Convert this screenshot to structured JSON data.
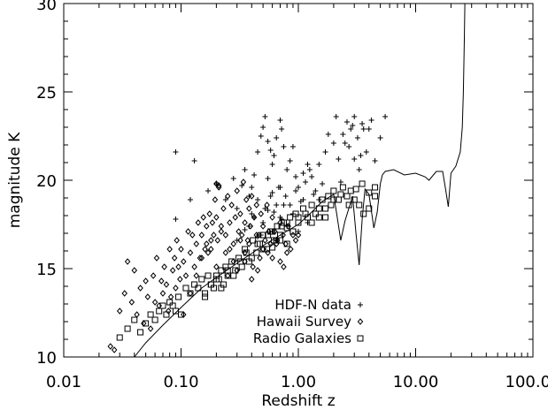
{
  "chart_data": {
    "type": "scatter",
    "xlabel": "Redshift z",
    "ylabel": "magnitude K",
    "xscale": "log",
    "xlim": [
      0.01,
      100
    ],
    "ylim": [
      10,
      30
    ],
    "x_ticks": [
      0.01,
      0.1,
      1,
      10,
      100
    ],
    "x_tick_labels": [
      "0.01",
      "0.10",
      "1.00",
      "10.00",
      "100.00"
    ],
    "y_ticks": [
      10,
      15,
      20,
      25,
      30
    ],
    "y_tick_labels": [
      "10",
      "15",
      "20",
      "25",
      "30"
    ],
    "grid": false,
    "legend_position": "bottom-right",
    "series": [
      {
        "name": "HDF-N data",
        "marker": "plus",
        "x": [
          0.09,
          0.13,
          0.09,
          0.12,
          0.17,
          0.2,
          0.24,
          0.28,
          0.3,
          0.33,
          0.35,
          0.38,
          0.4,
          0.42,
          0.45,
          0.48,
          0.5,
          0.52,
          0.55,
          0.58,
          0.6,
          0.62,
          0.65,
          0.7,
          0.72,
          0.75,
          0.8,
          0.85,
          0.9,
          0.95,
          1.0,
          1.1,
          1.2,
          1.3,
          1.4,
          1.5,
          1.7,
          1.8,
          2.0,
          2.2,
          2.4,
          2.6,
          2.8,
          3.0,
          3.2,
          3.5,
          3.8,
          4.0,
          4.5,
          5.0,
          5.5,
          0.45,
          0.5,
          0.55,
          0.6,
          0.65,
          0.7,
          0.75,
          0.8,
          0.9,
          1.0,
          1.1,
          1.2,
          0.38,
          0.42,
          0.48,
          0.52,
          0.58,
          0.62,
          0.68,
          0.72,
          0.78,
          0.85,
          0.95,
          1.05,
          1.15,
          1.25,
          1.35,
          1.5,
          1.6,
          0.3,
          0.35,
          0.4,
          0.45,
          2.5,
          2.7,
          3.0,
          3.3,
          3.6,
          4.2,
          2.3,
          2.1,
          2.9,
          3.4,
          0.55,
          0.6,
          0.65,
          0.7
        ],
        "y": [
          21.6,
          21.1,
          17.8,
          18.9,
          19.4,
          19.8,
          18.9,
          20.1,
          18.4,
          19.7,
          20.6,
          19.1,
          19.6,
          20.3,
          21.6,
          22.5,
          23.0,
          23.6,
          22.2,
          21.7,
          20.9,
          21.4,
          22.4,
          23.4,
          22.9,
          21.9,
          20.6,
          21.1,
          21.9,
          20.2,
          19.6,
          20.4,
          20.9,
          20.2,
          19.4,
          20.9,
          21.6,
          22.6,
          22.1,
          21.2,
          22.6,
          23.3,
          22.9,
          23.6,
          22.4,
          23.2,
          21.6,
          22.9,
          21.1,
          22.4,
          23.6,
          16.8,
          17.6,
          18.3,
          17.1,
          16.6,
          17.9,
          18.6,
          17.4,
          18.1,
          17.1,
          18.9,
          17.6,
          17.4,
          17.9,
          16.9,
          18.4,
          19.1,
          18.2,
          19.6,
          17.8,
          19.1,
          18.6,
          19.4,
          18.8,
          19.9,
          20.6,
          19.2,
          18.9,
          19.8,
          16.6,
          17.2,
          18.1,
          18.9,
          22.1,
          21.9,
          21.2,
          20.6,
          22.9,
          23.4,
          19.9,
          23.6,
          23.1,
          21.4,
          20.1,
          19.3,
          18.6,
          19.6
        ]
      },
      {
        "name": "Hawaii Survey",
        "marker": "diamond",
        "x": [
          0.025,
          0.027,
          0.03,
          0.033,
          0.035,
          0.038,
          0.04,
          0.042,
          0.045,
          0.048,
          0.05,
          0.052,
          0.055,
          0.058,
          0.06,
          0.062,
          0.065,
          0.068,
          0.07,
          0.072,
          0.075,
          0.078,
          0.08,
          0.082,
          0.085,
          0.088,
          0.09,
          0.092,
          0.095,
          0.098,
          0.1,
          0.105,
          0.11,
          0.115,
          0.12,
          0.125,
          0.13,
          0.135,
          0.14,
          0.145,
          0.15,
          0.155,
          0.16,
          0.165,
          0.17,
          0.175,
          0.18,
          0.185,
          0.19,
          0.195,
          0.2,
          0.205,
          0.21,
          0.22,
          0.23,
          0.24,
          0.25,
          0.26,
          0.27,
          0.28,
          0.29,
          0.3,
          0.31,
          0.32,
          0.33,
          0.34,
          0.35,
          0.36,
          0.37,
          0.38,
          0.39,
          0.4,
          0.42,
          0.44,
          0.46,
          0.48,
          0.5,
          0.52,
          0.54,
          0.56,
          0.58,
          0.6,
          0.63,
          0.66,
          0.7,
          0.74,
          0.78,
          0.82,
          0.86,
          0.9,
          0.95,
          1.0,
          0.105,
          0.12,
          0.135,
          0.15,
          0.165,
          0.18,
          0.2,
          0.22,
          0.24,
          0.26,
          0.28,
          0.3,
          0.32,
          0.35,
          0.38,
          0.41,
          0.44,
          0.47,
          0.5,
          0.55,
          0.6,
          0.65,
          0.7,
          0.75,
          0.8,
          0.2,
          0.21,
          0.25,
          0.3,
          0.35,
          0.4,
          0.45
        ],
        "y": [
          10.6,
          10.4,
          12.6,
          13.6,
          15.4,
          13.1,
          14.9,
          12.4,
          13.9,
          11.9,
          14.3,
          13.4,
          11.6,
          14.6,
          13.1,
          15.6,
          12.9,
          14.3,
          13.6,
          15.1,
          14.1,
          12.6,
          16.1,
          13.4,
          14.9,
          15.6,
          13.9,
          16.6,
          15.1,
          14.4,
          16.1,
          15.4,
          14.6,
          17.1,
          15.9,
          16.9,
          15.1,
          16.4,
          17.6,
          15.6,
          16.9,
          17.9,
          16.1,
          17.4,
          15.9,
          18.1,
          16.6,
          17.6,
          16.9,
          18.9,
          17.9,
          16.6,
          19.6,
          17.1,
          18.4,
          16.9,
          19.1,
          17.6,
          18.6,
          16.4,
          17.9,
          19.4,
          17.1,
          18.1,
          16.9,
          19.9,
          17.6,
          18.9,
          16.6,
          18.4,
          17.4,
          19.1,
          17.9,
          18.6,
          16.9,
          18.1,
          17.4,
          16.6,
          18.6,
          17.1,
          16.4,
          17.9,
          17.1,
          16.6,
          17.6,
          16.9,
          16.4,
          17.4,
          16.1,
          16.9,
          16.6,
          16.9,
          12.4,
          13.6,
          14.6,
          15.6,
          16.4,
          16.1,
          15.1,
          17.4,
          15.9,
          16.1,
          15.4,
          14.9,
          16.6,
          15.9,
          16.4,
          15.1,
          16.9,
          15.6,
          16.1,
          15.9,
          15.6,
          16.4,
          15.4,
          15.1,
          15.9,
          19.8,
          19.7,
          14.6,
          14.9,
          15.4,
          14.4,
          14.9
        ]
      },
      {
        "name": "Radio Galaxies",
        "marker": "square",
        "x": [
          0.03,
          0.035,
          0.04,
          0.045,
          0.05,
          0.055,
          0.06,
          0.065,
          0.07,
          0.075,
          0.08,
          0.085,
          0.09,
          0.095,
          0.1,
          0.11,
          0.12,
          0.13,
          0.14,
          0.15,
          0.16,
          0.17,
          0.18,
          0.19,
          0.2,
          0.21,
          0.22,
          0.23,
          0.24,
          0.25,
          0.27,
          0.29,
          0.31,
          0.33,
          0.35,
          0.38,
          0.41,
          0.44,
          0.47,
          0.5,
          0.54,
          0.58,
          0.62,
          0.66,
          0.7,
          0.75,
          0.8,
          0.85,
          0.9,
          0.95,
          1.0,
          1.1,
          1.2,
          1.3,
          1.4,
          1.5,
          1.6,
          1.7,
          1.8,
          1.9,
          2.0,
          2.2,
          2.4,
          2.6,
          2.8,
          3.0,
          3.3,
          3.6,
          4.0,
          4.5,
          0.16,
          0.18,
          0.2,
          0.22,
          0.25,
          0.28,
          0.32,
          0.36,
          0.4,
          0.45,
          0.5,
          0.55,
          0.6,
          0.65,
          0.72,
          0.8,
          0.9,
          1.0,
          1.15,
          1.3,
          1.5,
          1.7,
          2.0,
          2.3,
          2.7,
          3.1,
          3.5,
          4.0,
          4.5,
          0.6,
          0.7,
          0.8
        ],
        "y": [
          11.1,
          11.6,
          12.1,
          11.4,
          11.9,
          12.4,
          12.1,
          12.6,
          12.9,
          12.4,
          13.1,
          12.9,
          12.6,
          13.4,
          12.4,
          13.9,
          13.6,
          14.1,
          13.9,
          14.4,
          13.6,
          14.6,
          14.1,
          13.9,
          14.6,
          14.4,
          14.9,
          14.1,
          15.1,
          14.6,
          15.4,
          14.9,
          15.6,
          15.1,
          16.1,
          15.4,
          16.6,
          15.9,
          16.4,
          16.9,
          16.1,
          17.1,
          16.6,
          17.4,
          16.9,
          17.6,
          16.4,
          17.9,
          17.1,
          18.1,
          17.6,
          18.4,
          17.9,
          18.6,
          18.1,
          17.9,
          18.9,
          18.4,
          19.1,
          18.6,
          19.4,
          18.9,
          19.6,
          19.1,
          19.4,
          18.9,
          18.6,
          18.1,
          18.4,
          19.1,
          13.4,
          14.1,
          14.4,
          13.9,
          14.9,
          14.6,
          15.4,
          15.9,
          15.6,
          16.4,
          16.1,
          16.9,
          17.1,
          16.6,
          17.4,
          17.6,
          17.1,
          17.9,
          18.1,
          17.6,
          18.4,
          17.9,
          18.9,
          19.2,
          18.6,
          19.5,
          19.8,
          19.3,
          19.6,
          16.2,
          16.6,
          17.3
        ]
      }
    ],
    "curve": {
      "x": [
        0.04,
        0.05,
        0.07,
        0.1,
        0.15,
        0.2,
        0.3,
        0.5,
        0.7,
        1.0,
        1.3,
        1.6,
        2.0,
        2.1,
        2.3,
        2.5,
        2.9,
        3.1,
        3.3,
        3.5,
        3.7,
        4.0,
        4.4,
        4.7,
        5.0,
        5.2,
        5.5,
        6.5,
        8.0,
        10.0,
        12.0,
        13.0,
        15.0,
        17.0,
        18.0,
        19.0,
        20.0,
        22.0,
        24.0,
        25.0,
        25.5,
        26.0,
        26.3
      ],
      "y": [
        10.0,
        10.8,
        11.8,
        12.8,
        13.9,
        14.5,
        15.3,
        16.3,
        16.9,
        17.5,
        18.2,
        18.8,
        19.2,
        18.3,
        16.6,
        17.7,
        19.1,
        17.0,
        15.2,
        17.8,
        19.5,
        19.2,
        17.3,
        18.2,
        19.8,
        20.3,
        20.5,
        20.6,
        20.3,
        20.4,
        20.2,
        20.0,
        20.5,
        20.5,
        19.5,
        18.5,
        20.4,
        20.8,
        21.6,
        23.0,
        25.0,
        28.0,
        30.0
      ]
    }
  }
}
